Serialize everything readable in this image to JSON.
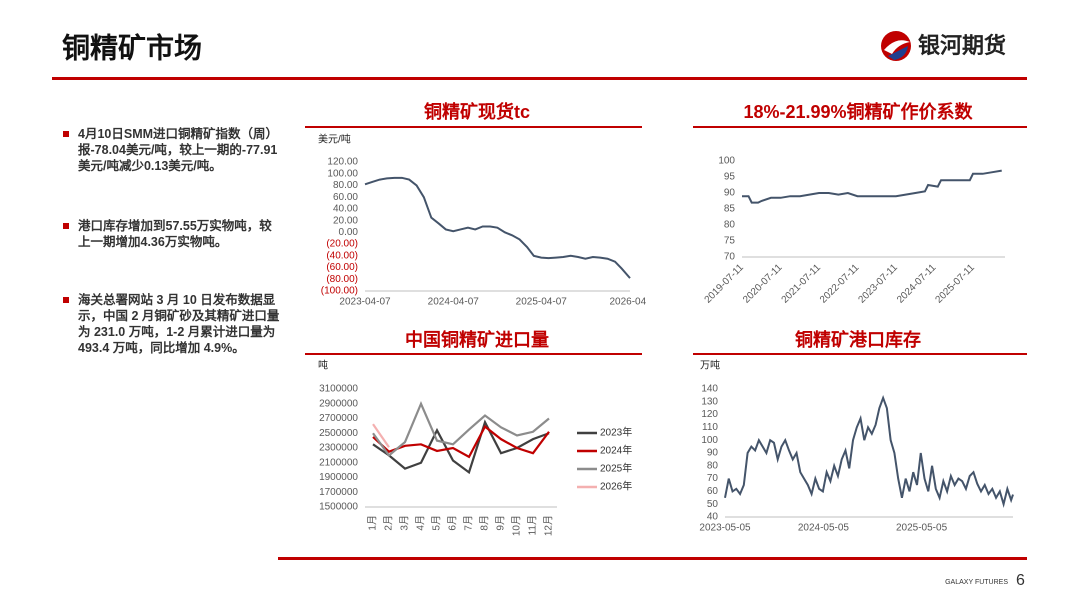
{
  "header": {
    "title": "铜精矿市场",
    "logo": "银河期货"
  },
  "bullets": [
    "4月10日SMM进口铜精矿指数（周）报-78.04美元/吨，较上一期的-77.91美元/吨减少0.13美元/吨。",
    "港口库存增加到57.55万实物吨，较上一期增加4.36万实物吨。",
    "海关总署网站 3 月 10 日发布数据显示，中国 2 月铜矿砂及其精矿进口量为 231.0 万吨，1-2 月累计进口量为 493.4 万吨，同比增加 4.9%。"
  ],
  "footer": {
    "brand": "GALAXY FUTURES",
    "page": "6"
  },
  "chart_data": [
    {
      "type": "line",
      "title": "铜精矿现货tc",
      "y_label": "美元/吨",
      "color": "#44546a",
      "negative_tick_color": "#c00000",
      "x": [
        "2023-04-07",
        "2023-05-07",
        "2023-06-07",
        "2023-07-07",
        "2023-08-07",
        "2023-09-07",
        "2023-10-07",
        "2023-11-07",
        "2023-12-07",
        "2024-01-07",
        "2024-02-07",
        "2024-03-07",
        "2024-04-07",
        "2024-05-07",
        "2024-06-07",
        "2024-07-07",
        "2024-08-07",
        "2024-09-07",
        "2024-10-07",
        "2024-11-07",
        "2024-12-07",
        "2025-01-07",
        "2025-02-07",
        "2025-03-07",
        "2025-04-07",
        "2025-05-07",
        "2025-06-07",
        "2025-07-07",
        "2025-08-07",
        "2025-09-07",
        "2025-10-07",
        "2025-11-07",
        "2025-12-07",
        "2026-01-07",
        "2026-02-07",
        "2026-03-07",
        "2026-04-10"
      ],
      "values": [
        82,
        86,
        90,
        92,
        93,
        93,
        90,
        80,
        60,
        25,
        15,
        5,
        2,
        5,
        8,
        5,
        10,
        10,
        8,
        0,
        -5,
        -12,
        -25,
        -40,
        -43,
        -44,
        -43,
        -42,
        -40,
        -42,
        -45,
        -42,
        -43,
        -45,
        -50,
        -62,
        -78.04
      ],
      "xlim": [
        "2023-04-07",
        "2026-04-10"
      ],
      "xticks": [
        "2023-04-07",
        "2024-04-07",
        "2025-04-07",
        "2026-04"
      ],
      "ylim": [
        -100,
        120
      ],
      "yticks": [
        {
          "value": 120,
          "label": "120.00"
        },
        {
          "value": 100,
          "label": "100.00"
        },
        {
          "value": 80,
          "label": "80.00"
        },
        {
          "value": 60,
          "label": "60.00"
        },
        {
          "value": 40,
          "label": "40.00"
        },
        {
          "value": 20,
          "label": "20.00"
        },
        {
          "value": 0,
          "label": "0.00"
        },
        {
          "value": -20,
          "label": "(20.00)"
        },
        {
          "value": -40,
          "label": "(40.00)"
        },
        {
          "value": -60,
          "label": "(60.00)"
        },
        {
          "value": -80,
          "label": "(80.00)"
        },
        {
          "value": -100,
          "label": "(100.00)"
        }
      ]
    },
    {
      "type": "line",
      "title": "18%-21.99%铜精矿作价系数",
      "color": "#44546a",
      "x": [
        "2019-07-11",
        "2019-09-11",
        "2019-10-11",
        "2019-12-11",
        "2020-01-11",
        "2020-04-11",
        "2020-07-11",
        "2020-10-11",
        "2021-01-11",
        "2021-04-11",
        "2021-07-11",
        "2021-10-11",
        "2022-01-11",
        "2022-04-11",
        "2022-07-11",
        "2023-01-11",
        "2023-07-11",
        "2023-10-11",
        "2024-01-11",
        "2024-04-11",
        "2024-05-11",
        "2024-08-11",
        "2024-09-11",
        "2025-03-11",
        "2025-06-11",
        "2025-07-11",
        "2025-10-11",
        "2026-01-11",
        "2026-04-10"
      ],
      "values": [
        89,
        89,
        87,
        87,
        87.5,
        88.5,
        88.5,
        89,
        89,
        89.5,
        90,
        90,
        89.5,
        90,
        89,
        89,
        89,
        89.5,
        90,
        90.5,
        92.5,
        92,
        94,
        94,
        94,
        96,
        96,
        96.5,
        97
      ],
      "xlim": [
        "2019-07-11",
        "2026-05-11"
      ],
      "xticks": [
        "2019-07-11",
        "2020-07-11",
        "2021-07-11",
        "2022-07-11",
        "2023-07-11",
        "2024-07-11",
        "2025-07-11"
      ],
      "ylim": [
        70,
        100
      ],
      "yticks": [
        70,
        75,
        80,
        85,
        90,
        95,
        100
      ]
    },
    {
      "type": "line",
      "title": "中国铜精矿进口量",
      "y_label": "吨",
      "categories": [
        "1月",
        "2月",
        "3月",
        "4月",
        "5月",
        "6月",
        "7月",
        "8月",
        "9月",
        "10月",
        "11月",
        "12月"
      ],
      "series": [
        {
          "name": "2023年",
          "color": "#404040",
          "values": [
            2350000,
            2200000,
            2020000,
            2100000,
            2540000,
            2130000,
            1970000,
            2650000,
            2230000,
            2300000,
            2420000,
            2500000
          ]
        },
        {
          "name": "2024年",
          "color": "#c00000",
          "values": [
            2450000,
            2250000,
            2330000,
            2350000,
            2260000,
            2300000,
            2180000,
            2590000,
            2420000,
            2300000,
            2230000,
            2520000
          ]
        },
        {
          "name": "2025年",
          "color": "#8c8c8c",
          "values": [
            2500000,
            2200000,
            2380000,
            2900000,
            2400000,
            2350000,
            2550000,
            2740000,
            2580000,
            2470000,
            2520000,
            2700000
          ]
        },
        {
          "name": "2026年",
          "color": "#f4b0b0",
          "values": [
            2624000,
            2310000,
            null,
            null,
            null,
            null,
            null,
            null,
            null,
            null,
            null,
            null
          ]
        }
      ],
      "ylim": [
        1500000,
        3100000
      ],
      "yticks": [
        1500000,
        1700000,
        1900000,
        2100000,
        2300000,
        2500000,
        2700000,
        2900000,
        3100000
      ]
    },
    {
      "type": "line",
      "title": "铜精矿港口库存",
      "y_label": "万吨",
      "color": "#44546a",
      "x": [
        "2023-05-05",
        "2023-05-19",
        "2023-06-02",
        "2023-06-16",
        "2023-06-30",
        "2023-07-14",
        "2023-07-28",
        "2023-08-11",
        "2023-08-25",
        "2023-09-08",
        "2023-09-22",
        "2023-10-06",
        "2023-10-20",
        "2023-11-03",
        "2023-11-17",
        "2023-12-01",
        "2023-12-15",
        "2023-12-29",
        "2024-01-12",
        "2024-01-26",
        "2024-02-09",
        "2024-02-23",
        "2024-03-08",
        "2024-03-22",
        "2024-04-05",
        "2024-04-19",
        "2024-05-03",
        "2024-05-17",
        "2024-05-31",
        "2024-06-14",
        "2024-06-28",
        "2024-07-12",
        "2024-07-26",
        "2024-08-09",
        "2024-08-23",
        "2024-09-06",
        "2024-09-20",
        "2024-10-04",
        "2024-10-18",
        "2024-11-01",
        "2024-11-15",
        "2024-11-29",
        "2024-12-13",
        "2024-12-27",
        "2025-01-10",
        "2025-01-24",
        "2025-02-07",
        "2025-02-21",
        "2025-03-07",
        "2025-03-21",
        "2025-04-04",
        "2025-04-18",
        "2025-05-02",
        "2025-05-16",
        "2025-05-30",
        "2025-06-13",
        "2025-06-27",
        "2025-07-11",
        "2025-07-25",
        "2025-08-08",
        "2025-08-22",
        "2025-09-05",
        "2025-09-19",
        "2025-10-03",
        "2025-10-17",
        "2025-10-31",
        "2025-11-14",
        "2025-11-28",
        "2025-12-12",
        "2025-12-26",
        "2026-01-09",
        "2026-01-23",
        "2026-02-06",
        "2026-02-20",
        "2026-03-06",
        "2026-03-20",
        "2026-04-03",
        "2026-04-10"
      ],
      "values": [
        55,
        70,
        60,
        62,
        58,
        65,
        90,
        95,
        92,
        100,
        95,
        90,
        100,
        98,
        85,
        95,
        100,
        92,
        85,
        90,
        75,
        70,
        65,
        58,
        70,
        62,
        60,
        75,
        68,
        80,
        72,
        85,
        92,
        78,
        100,
        110,
        117,
        100,
        110,
        105,
        112,
        125,
        133,
        125,
        100,
        90,
        70,
        55,
        70,
        60,
        75,
        65,
        90,
        70,
        60,
        80,
        62,
        55,
        68,
        60,
        72,
        65,
        70,
        68,
        62,
        72,
        75,
        66,
        60,
        65,
        58,
        62,
        55,
        60,
        50,
        62,
        53.19,
        57.55
      ],
      "xlim": [
        "2023-05-05",
        "2026-04-10"
      ],
      "xticks": [
        "2023-05-05",
        "2024-05-05",
        "2025-05-05"
      ],
      "ylim": [
        40,
        140
      ],
      "yticks": [
        40,
        50,
        60,
        70,
        80,
        90,
        100,
        110,
        120,
        130,
        140
      ]
    }
  ]
}
